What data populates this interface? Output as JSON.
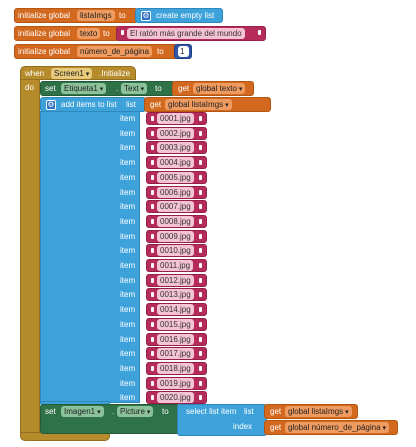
{
  "globals": [
    {
      "kw": "initialize global",
      "name": "listaImgs",
      "to": "to",
      "value": "create empty list"
    },
    {
      "kw": "initialize global",
      "name": "texto",
      "to": "to",
      "value": "El ratón más grande del mundo"
    },
    {
      "kw": "initialize global",
      "name": "número_de_página",
      "to": "to",
      "value": "1"
    }
  ],
  "event": {
    "when": "when",
    "component": "Screen1",
    "event": ".Initialize",
    "do": "do"
  },
  "set1": {
    "set": "set",
    "component": "Etiqueta1",
    "dot": ".",
    "prop": "Text",
    "to": "to",
    "get": "get",
    "var": "global texto"
  },
  "add": {
    "label": "add items to list",
    "list": "list",
    "get": "get",
    "var": "global listaImgs",
    "item_label": "item",
    "items": [
      "0001.jpg",
      "0002.jpg",
      "0003.jpg",
      "0004.jpg",
      "0005.jpg",
      "0006.jpg",
      "0007.jpg",
      "0008.jpg",
      "0009.jpg",
      "0010.jpg",
      "0011.jpg",
      "0012.jpg",
      "0013.jpg",
      "0014.jpg",
      "0015.jpg",
      "0016.jpg",
      "0017.jpg",
      "0018.jpg",
      "0019.jpg",
      "0020.jpg"
    ]
  },
  "set2": {
    "set": "set",
    "component": "Imagen1",
    "dot": ".",
    "prop": "Picture",
    "to": "to",
    "select": "select list item",
    "list": "list",
    "index": "index",
    "get": "get",
    "var_list": "global listaImgs",
    "var_index": "global número_de_página"
  }
}
